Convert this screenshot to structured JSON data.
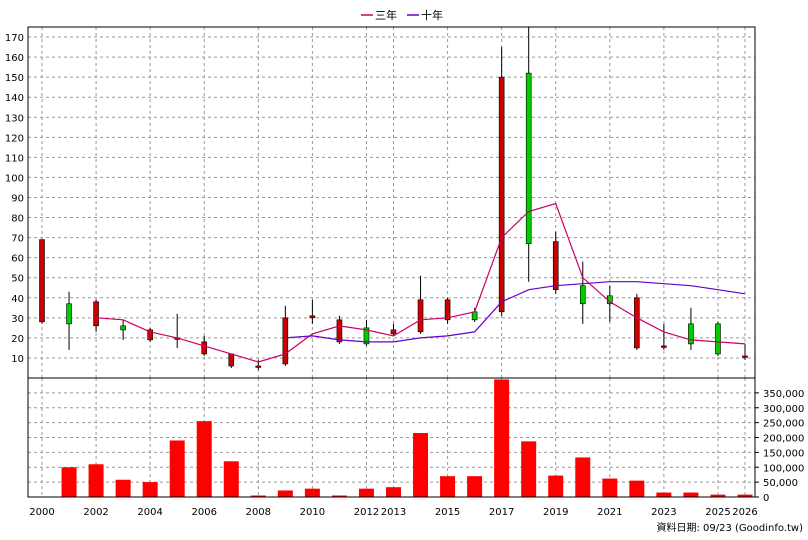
{
  "legend": [
    {
      "label": "三年",
      "color": "#cc0066"
    },
    {
      "label": "十年",
      "color": "#6600cc"
    }
  ],
  "credit": "資料日期: 09/23  (Goodinfo.tw)",
  "colors": {
    "up": "#cc0000",
    "down": "#00cc00",
    "volume": "#ff0000"
  },
  "chart_data": {
    "type": "candlestick+bar",
    "price_axis": {
      "min": 0,
      "max": 175,
      "ticks": [
        10,
        20,
        30,
        40,
        50,
        60,
        70,
        80,
        90,
        100,
        110,
        120,
        130,
        140,
        150,
        160,
        170
      ]
    },
    "volume_axis": {
      "min": 0,
      "max": 400000,
      "ticks": [
        0,
        50000,
        100000,
        150000,
        200000,
        250000,
        300000,
        350000
      ],
      "tick_labels": [
        "0",
        "50,000",
        "100,000",
        "150,000",
        "200,000",
        "250,000",
        "300,000",
        "350,000"
      ]
    },
    "x_labels": [
      {
        "year": 2000,
        "label": "2000"
      },
      {
        "year": 2002,
        "label": "2002"
      },
      {
        "year": 2004,
        "label": "2004"
      },
      {
        "year": 2006,
        "label": "2006"
      },
      {
        "year": 2008,
        "label": "2008"
      },
      {
        "year": 2010,
        "label": "2010"
      },
      {
        "year": 2012,
        "label": "2012"
      },
      {
        "year": 2013,
        "label": "2013"
      },
      {
        "year": 2015,
        "label": "2015"
      },
      {
        "year": 2017,
        "label": "2017"
      },
      {
        "year": 2019,
        "label": "2019"
      },
      {
        "year": 2021,
        "label": "2021"
      },
      {
        "year": 2023,
        "label": "2023"
      },
      {
        "year": 2025,
        "label": "2025"
      },
      {
        "year": 2026,
        "label": "2026"
      }
    ],
    "candles": [
      {
        "year": 2000,
        "open": 28,
        "close": 69,
        "high": 69,
        "low": 27,
        "vol": 0
      },
      {
        "year": 2001,
        "open": 37,
        "close": 27,
        "high": 43,
        "low": 14,
        "vol": 100000
      },
      {
        "year": 2002,
        "open": 26,
        "close": 38,
        "high": 39,
        "low": 23,
        "vol": 110000
      },
      {
        "year": 2003,
        "open": 26,
        "close": 24,
        "high": 29,
        "low": 19,
        "vol": 58000
      },
      {
        "year": 2004,
        "open": 19,
        "close": 24,
        "high": 25,
        "low": 18,
        "vol": 50000
      },
      {
        "year": 2005,
        "open": 20,
        "close": 20,
        "high": 32,
        "low": 15,
        "vol": 190000
      },
      {
        "year": 2006,
        "open": 12,
        "close": 18,
        "high": 21,
        "low": 11,
        "vol": 255000
      },
      {
        "year": 2007,
        "open": 6,
        "close": 12,
        "high": 12,
        "low": 5,
        "vol": 120000
      },
      {
        "year": 2008,
        "open": 6,
        "close": 6,
        "high": 9,
        "low": 4,
        "vol": 5000
      },
      {
        "year": 2009,
        "open": 7,
        "close": 30,
        "high": 36,
        "low": 6,
        "vol": 22000
      },
      {
        "year": 2010,
        "open": 30,
        "close": 31,
        "high": 39,
        "low": 27,
        "vol": 28000
      },
      {
        "year": 2011,
        "open": 18,
        "close": 29,
        "high": 31,
        "low": 17,
        "vol": 5000
      },
      {
        "year": 2012,
        "open": 25,
        "close": 17,
        "high": 29,
        "low": 16,
        "vol": 28000
      },
      {
        "year": 2013,
        "open": 22,
        "close": 24,
        "high": 27,
        "low": 21,
        "vol": 33000
      },
      {
        "year": 2014,
        "open": 23,
        "close": 39,
        "high": 51,
        "low": 22,
        "vol": 215000
      },
      {
        "year": 2015,
        "open": 29,
        "close": 39,
        "high": 40,
        "low": 27,
        "vol": 70000
      },
      {
        "year": 2016,
        "open": 33,
        "close": 29,
        "high": 35,
        "low": 28,
        "vol": 70000
      },
      {
        "year": 2017,
        "open": 33,
        "close": 150,
        "high": 165,
        "low": 31,
        "vol": 395000
      },
      {
        "year": 2018,
        "open": 152,
        "close": 67,
        "high": 175,
        "low": 48,
        "vol": 187000
      },
      {
        "year": 2019,
        "open": 44,
        "close": 68,
        "high": 73,
        "low": 42,
        "vol": 72000
      },
      {
        "year": 2020,
        "open": 46,
        "close": 37,
        "high": 58,
        "low": 27,
        "vol": 133000
      },
      {
        "year": 2021,
        "open": 41,
        "close": 37,
        "high": 46,
        "low": 28,
        "vol": 62000
      },
      {
        "year": 2022,
        "open": 15,
        "close": 40,
        "high": 42,
        "low": 14,
        "vol": 55000
      },
      {
        "year": 2023,
        "open": 16,
        "close": 16,
        "high": 27,
        "low": 14,
        "vol": 15000
      },
      {
        "year": 2024,
        "open": 27,
        "close": 17,
        "high": 35,
        "low": 14,
        "vol": 15000
      },
      {
        "year": 2025,
        "open": 27,
        "close": 12,
        "high": 28,
        "low": 11,
        "vol": 8000
      },
      {
        "year": 2026,
        "open": 11,
        "close": 11,
        "high": 17,
        "low": 9,
        "vol": 8000
      }
    ],
    "series": [
      {
        "name": "三年",
        "color": "#cc0066",
        "points": [
          [
            2002,
            30
          ],
          [
            2003,
            29
          ],
          [
            2004,
            23
          ],
          [
            2005,
            20
          ],
          [
            2006,
            16
          ],
          [
            2007,
            12
          ],
          [
            2008,
            8
          ],
          [
            2009,
            12
          ],
          [
            2010,
            22
          ],
          [
            2011,
            26
          ],
          [
            2012,
            24
          ],
          [
            2013,
            21
          ],
          [
            2014,
            29
          ],
          [
            2015,
            30
          ],
          [
            2016,
            33
          ],
          [
            2017,
            70
          ],
          [
            2018,
            83
          ],
          [
            2019,
            87
          ],
          [
            2020,
            50
          ],
          [
            2021,
            38
          ],
          [
            2022,
            30
          ],
          [
            2023,
            23
          ],
          [
            2024,
            19
          ],
          [
            2025,
            18
          ],
          [
            2026,
            17
          ]
        ]
      },
      {
        "name": "十年",
        "color": "#6600cc",
        "points": [
          [
            2009,
            20
          ],
          [
            2010,
            21
          ],
          [
            2011,
            19
          ],
          [
            2012,
            18
          ],
          [
            2013,
            18
          ],
          [
            2014,
            20
          ],
          [
            2015,
            21
          ],
          [
            2016,
            23
          ],
          [
            2017,
            38
          ],
          [
            2018,
            44
          ],
          [
            2019,
            46
          ],
          [
            2020,
            47
          ],
          [
            2021,
            48
          ],
          [
            2022,
            48
          ],
          [
            2023,
            47
          ],
          [
            2024,
            46
          ],
          [
            2025,
            44
          ],
          [
            2026,
            42
          ]
        ]
      }
    ]
  }
}
